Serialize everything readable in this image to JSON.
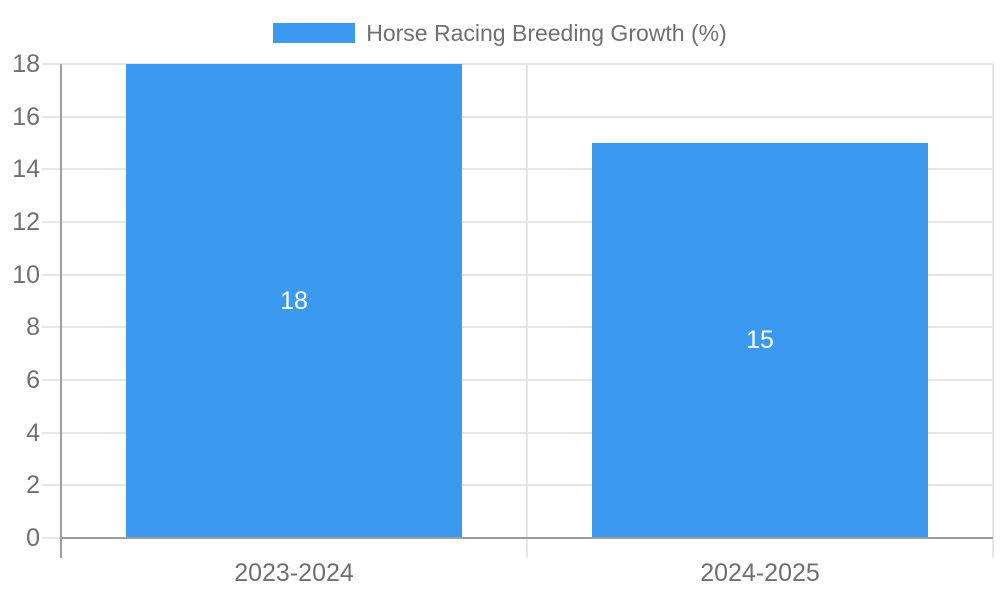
{
  "chart_data": {
    "type": "bar",
    "title": "Horse Racing Breeding Growth (%)",
    "legend": {
      "label": "Horse Racing Breeding Growth (%)",
      "position": "top"
    },
    "categories": [
      "2023-2024",
      "2024-2025"
    ],
    "series": [
      {
        "name": "Horse Racing Breeding Growth (%)",
        "values": [
          18,
          15
        ]
      }
    ],
    "value_labels": [
      "18",
      "15"
    ],
    "xlabel": "",
    "ylabel": "",
    "ylim": [
      0,
      18
    ],
    "y_ticks": [
      0,
      2,
      4,
      6,
      8,
      10,
      12,
      14,
      16,
      18
    ],
    "grid": true,
    "colors": {
      "bar": "#3B9AEF",
      "text": "#707070",
      "grid": "#E6E6E6",
      "axis": "#9E9E9E",
      "value_label": "#FFFFFF",
      "background": "#FFFFFF"
    }
  }
}
